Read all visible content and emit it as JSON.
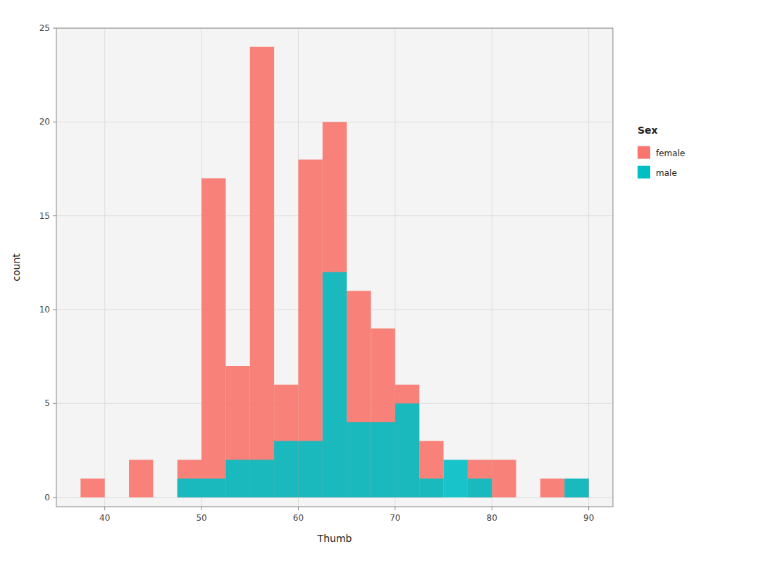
{
  "chart_data": {
    "type": "histogram",
    "bins": [
      37.5,
      40.0,
      42.5,
      45.0,
      47.5,
      50.0,
      52.5,
      55.0,
      57.5,
      60.0,
      62.5,
      65.0,
      67.5,
      70.0,
      72.5,
      75.0,
      77.5,
      80.0,
      82.5,
      85.0,
      87.5,
      90.0
    ],
    "series": [
      {
        "name": "female",
        "color": "#F8766D",
        "values": [
          1,
          0,
          2,
          0,
          2,
          17,
          7,
          24,
          6,
          18,
          20,
          11,
          9,
          6,
          3,
          0,
          2,
          2,
          0,
          1,
          1
        ]
      },
      {
        "name": "male",
        "color": "#00BFC4",
        "values": [
          0,
          0,
          0,
          0,
          1,
          1,
          2,
          2,
          3,
          3,
          12,
          4,
          4,
          5,
          1,
          2,
          1,
          0,
          0,
          0,
          1
        ]
      }
    ],
    "stacked": false,
    "xlabel": "Thumb",
    "ylabel": "count",
    "xlim": [
      35.0,
      92.5
    ],
    "ylim": [
      -0.5,
      25
    ],
    "xticks": [
      40,
      50,
      60,
      70,
      80,
      90
    ],
    "yticks": [
      0,
      5,
      10,
      15,
      20,
      25
    ],
    "grid": true,
    "legend": "right",
    "legend_title": "Sex"
  }
}
